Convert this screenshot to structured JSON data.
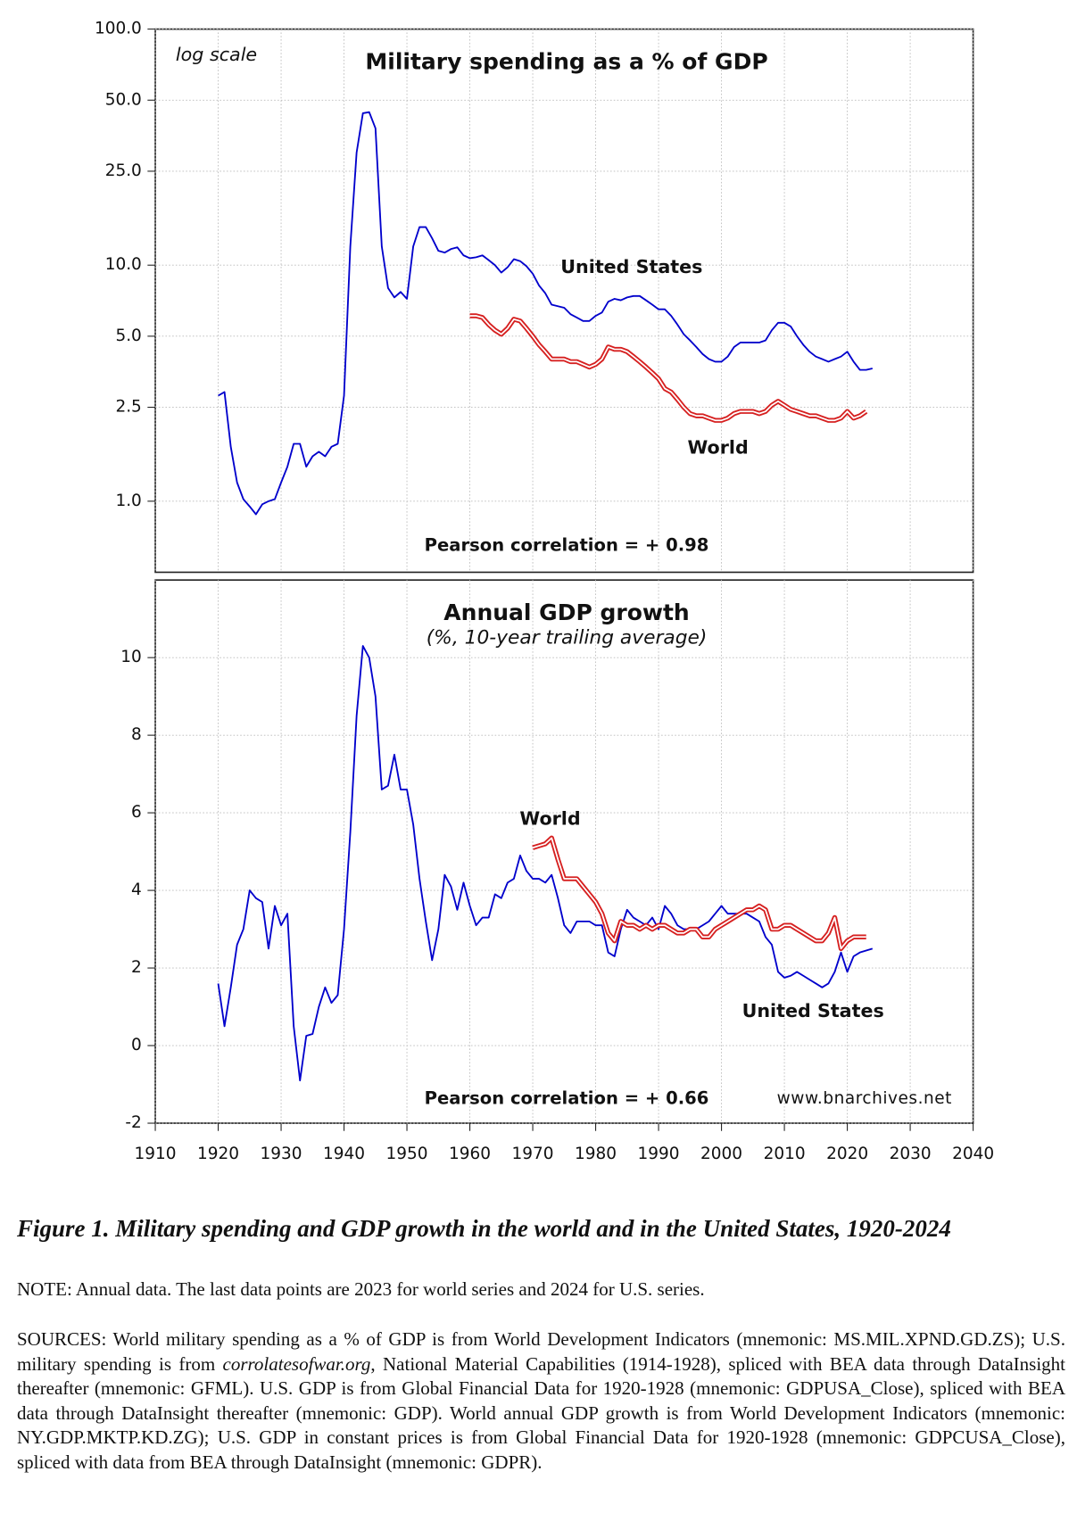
{
  "chart_data": [
    {
      "type": "line",
      "title": "Military spending as a % of GDP",
      "note": "log scale",
      "annotation": "Pearson correlation = + 0.98",
      "log_scale": true,
      "grid": true,
      "x": [
        1920,
        1921,
        1922,
        1923,
        1924,
        1925,
        1926,
        1927,
        1928,
        1929,
        1930,
        1931,
        1932,
        1933,
        1934,
        1935,
        1936,
        1937,
        1938,
        1939,
        1940,
        1941,
        1942,
        1943,
        1944,
        1945,
        1946,
        1947,
        1948,
        1949,
        1950,
        1951,
        1952,
        1953,
        1954,
        1955,
        1956,
        1957,
        1958,
        1959,
        1960,
        1961,
        1962,
        1963,
        1964,
        1965,
        1966,
        1967,
        1968,
        1969,
        1970,
        1971,
        1972,
        1973,
        1974,
        1975,
        1976,
        1977,
        1978,
        1979,
        1980,
        1981,
        1982,
        1983,
        1984,
        1985,
        1986,
        1987,
        1988,
        1989,
        1990,
        1991,
        1992,
        1993,
        1994,
        1995,
        1996,
        1997,
        1998,
        1999,
        2000,
        2001,
        2002,
        2003,
        2004,
        2005,
        2006,
        2007,
        2008,
        2009,
        2010,
        2011,
        2012,
        2013,
        2014,
        2015,
        2016,
        2017,
        2018,
        2019,
        2020,
        2021,
        2022,
        2023,
        2024
      ],
      "series": [
        {
          "name": "United States",
          "color": "#0000cc",
          "values": [
            2.8,
            2.9,
            1.7,
            1.2,
            1.02,
            0.95,
            0.88,
            0.97,
            1.0,
            1.02,
            1.2,
            1.4,
            1.75,
            1.75,
            1.4,
            1.55,
            1.62,
            1.55,
            1.7,
            1.75,
            2.8,
            12,
            30,
            44,
            44.5,
            38,
            12,
            8,
            7.3,
            7.7,
            7.2,
            12,
            14.5,
            14.5,
            13,
            11.5,
            11.3,
            11.7,
            11.9,
            11,
            10.7,
            10.8,
            11,
            10.5,
            10,
            9.3,
            9.8,
            10.6,
            10.4,
            9.9,
            9.2,
            8.2,
            7.6,
            6.8,
            6.7,
            6.6,
            6.2,
            6.0,
            5.8,
            5.8,
            6.1,
            6.3,
            7.0,
            7.2,
            7.1,
            7.3,
            7.4,
            7.4,
            7.1,
            6.8,
            6.5,
            6.5,
            6.1,
            5.6,
            5.1,
            4.8,
            4.5,
            4.2,
            4.0,
            3.9,
            3.9,
            4.1,
            4.5,
            4.7,
            4.7,
            4.7,
            4.7,
            4.8,
            5.3,
            5.7,
            5.7,
            5.5,
            5.0,
            4.6,
            4.3,
            4.1,
            4.0,
            3.9,
            4.0,
            4.1,
            4.3,
            3.9,
            3.6,
            3.6,
            3.65
          ]
        },
        {
          "name": "World",
          "color": "#d62020",
          "values": [
            null,
            null,
            null,
            null,
            null,
            null,
            null,
            null,
            null,
            null,
            null,
            null,
            null,
            null,
            null,
            null,
            null,
            null,
            null,
            null,
            null,
            null,
            null,
            null,
            null,
            null,
            null,
            null,
            null,
            null,
            null,
            null,
            null,
            null,
            null,
            null,
            null,
            null,
            null,
            null,
            6.1,
            6.1,
            6.0,
            5.6,
            5.3,
            5.1,
            5.4,
            5.9,
            5.8,
            5.4,
            5.0,
            4.6,
            4.3,
            4.0,
            4.0,
            4.0,
            3.9,
            3.9,
            3.8,
            3.7,
            3.8,
            4.0,
            4.5,
            4.4,
            4.4,
            4.3,
            4.1,
            3.9,
            3.7,
            3.5,
            3.3,
            3.0,
            2.9,
            2.7,
            2.5,
            2.35,
            2.3,
            2.3,
            2.25,
            2.2,
            2.2,
            2.25,
            2.35,
            2.4,
            2.4,
            2.4,
            2.35,
            2.4,
            2.55,
            2.65,
            2.55,
            2.45,
            2.4,
            2.35,
            2.3,
            2.3,
            2.25,
            2.2,
            2.2,
            2.25,
            2.4,
            2.25,
            2.3,
            2.4,
            null
          ]
        }
      ],
      "xlim": [
        1910,
        2040
      ],
      "xticks": [
        1910,
        1920,
        1930,
        1940,
        1950,
        1960,
        1970,
        1980,
        1990,
        2000,
        2010,
        2020,
        2030,
        2040
      ],
      "ylim": [
        0.5,
        100
      ],
      "yticks": [
        {
          "value": 1,
          "label": "1.0"
        },
        {
          "value": 2.5,
          "label": "2.5"
        },
        {
          "value": 5,
          "label": "5.0"
        },
        {
          "value": 10,
          "label": "10.0"
        },
        {
          "value": 25,
          "label": "25.0"
        },
        {
          "value": 50,
          "label": "50.0"
        },
        {
          "value": 100,
          "label": "100.0"
        }
      ]
    },
    {
      "type": "line",
      "title": "Annual GDP growth",
      "subtitle": "(%, 10-year trailing average)",
      "annotation": "Pearson correlation = + 0.66",
      "watermark": "www.bnarchives.net",
      "log_scale": false,
      "grid": true,
      "x": [
        1920,
        1921,
        1922,
        1923,
        1924,
        1925,
        1926,
        1927,
        1928,
        1929,
        1930,
        1931,
        1932,
        1933,
        1934,
        1935,
        1936,
        1937,
        1938,
        1939,
        1940,
        1941,
        1942,
        1943,
        1944,
        1945,
        1946,
        1947,
        1948,
        1949,
        1950,
        1951,
        1952,
        1953,
        1954,
        1955,
        1956,
        1957,
        1958,
        1959,
        1960,
        1961,
        1962,
        1963,
        1964,
        1965,
        1966,
        1967,
        1968,
        1969,
        1970,
        1971,
        1972,
        1973,
        1974,
        1975,
        1976,
        1977,
        1978,
        1979,
        1980,
        1981,
        1982,
        1983,
        1984,
        1985,
        1986,
        1987,
        1988,
        1989,
        1990,
        1991,
        1992,
        1993,
        1994,
        1995,
        1996,
        1997,
        1998,
        1999,
        2000,
        2001,
        2002,
        2003,
        2004,
        2005,
        2006,
        2007,
        2008,
        2009,
        2010,
        2011,
        2012,
        2013,
        2014,
        2015,
        2016,
        2017,
        2018,
        2019,
        2020,
        2021,
        2022,
        2023,
        2024
      ],
      "series": [
        {
          "name": "United States",
          "color": "#0000cc",
          "values": [
            1.6,
            0.5,
            1.5,
            2.6,
            3.0,
            4.0,
            3.8,
            3.7,
            2.5,
            3.6,
            3.1,
            3.4,
            0.5,
            -0.9,
            0.25,
            0.3,
            1.0,
            1.5,
            1.1,
            1.3,
            3.0,
            5.5,
            8.5,
            10.3,
            10.0,
            9.0,
            6.6,
            6.7,
            7.5,
            6.6,
            6.6,
            5.7,
            4.3,
            3.2,
            2.2,
            3.0,
            4.4,
            4.1,
            3.5,
            4.2,
            3.6,
            3.1,
            3.3,
            3.3,
            3.9,
            3.8,
            4.2,
            4.3,
            4.9,
            4.5,
            4.3,
            4.3,
            4.2,
            4.4,
            3.8,
            3.1,
            2.9,
            3.2,
            3.2,
            3.2,
            3.1,
            3.1,
            2.4,
            2.3,
            3.0,
            3.5,
            3.3,
            3.2,
            3.1,
            3.3,
            3.0,
            3.6,
            3.4,
            3.1,
            3.0,
            3.0,
            3.0,
            3.1,
            3.2,
            3.4,
            3.6,
            3.4,
            3.4,
            3.4,
            3.4,
            3.3,
            3.2,
            2.8,
            2.6,
            1.9,
            1.75,
            1.8,
            1.9,
            1.8,
            1.7,
            1.6,
            1.5,
            1.6,
            1.9,
            2.4,
            1.9,
            2.3,
            2.4,
            2.45,
            2.5
          ]
        },
        {
          "name": "World",
          "color": "#d62020",
          "values": [
            null,
            null,
            null,
            null,
            null,
            null,
            null,
            null,
            null,
            null,
            null,
            null,
            null,
            null,
            null,
            null,
            null,
            null,
            null,
            null,
            null,
            null,
            null,
            null,
            null,
            null,
            null,
            null,
            null,
            null,
            null,
            null,
            null,
            null,
            null,
            null,
            null,
            null,
            null,
            null,
            null,
            null,
            null,
            null,
            null,
            null,
            null,
            null,
            null,
            null,
            5.1,
            5.15,
            5.2,
            5.35,
            4.8,
            4.3,
            4.3,
            4.3,
            4.1,
            3.9,
            3.7,
            3.4,
            2.9,
            2.7,
            3.2,
            3.1,
            3.1,
            3.0,
            3.1,
            3.0,
            3.1,
            3.1,
            3.0,
            2.9,
            2.9,
            3.0,
            3.0,
            2.8,
            2.8,
            3.0,
            3.1,
            3.2,
            3.3,
            3.4,
            3.5,
            3.5,
            3.6,
            3.5,
            3.0,
            3.0,
            3.1,
            3.1,
            3.0,
            2.9,
            2.8,
            2.7,
            2.7,
            2.9,
            3.3,
            2.5,
            2.7,
            2.8,
            2.8,
            2.8,
            null
          ]
        }
      ],
      "xlim": [
        1910,
        2040
      ],
      "xticks": [
        1910,
        1920,
        1930,
        1940,
        1950,
        1960,
        1970,
        1980,
        1990,
        2000,
        2010,
        2020,
        2030,
        2040
      ],
      "ylim": [
        -2,
        12
      ],
      "yticks": [
        -2,
        0,
        2,
        4,
        6,
        8,
        10
      ]
    }
  ],
  "figure": {
    "caption": "Figure 1. Military spending and GDP growth in the world and in the United States, 1920-2024",
    "note": "NOTE: Annual data. The last data points are 2023 for world series and 2024 for U.S. series.",
    "sources": [
      "SOURCES: World military spending as a % of GDP is from World Development Indicators (mnemonic: MS.MIL.XPND.GD.ZS); U.S. military spending is from ",
      "corrolatesofwar.org",
      ", National Material Capabilities (1914-1928), spliced with BEA data through DataInsight thereafter (mnemonic: GFML). U.S. GDP is from Global Financial Data for 1920-1928 (mnemonic: GDPUSA_Close), spliced with BEA data through DataInsight thereafter (mnemonic: GDP). World annual GDP growth is from World Development Indicators (mnemonic: NY.GDP.MKTP.KD.ZG); U.S. GDP in constant prices is from Global Financial Data for 1920-1928 (mnemonic: GDPCUSA_Close), spliced with data from BEA through DataInsight (mnemonic: GDPR)."
    ]
  }
}
